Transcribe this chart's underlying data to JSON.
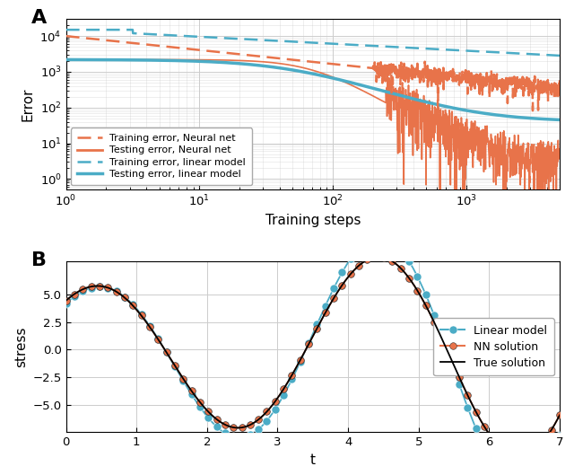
{
  "panel_A_label": "A",
  "panel_B_label": "B",
  "xlabel_A": "Training steps",
  "ylabel_A": "Error",
  "xlabel_B": "t",
  "ylabel_B": "stress",
  "legend_A": [
    {
      "label": "Training error, Neural net",
      "color": "#E8734A",
      "linestyle": "dashed"
    },
    {
      "label": "Testing error, Neural net",
      "color": "#E8734A",
      "linestyle": "solid"
    },
    {
      "label": "Training error, linear model",
      "color": "#4BACC6",
      "linestyle": "dashed"
    },
    {
      "label": "Testing error, linear model",
      "color": "#4BACC6",
      "linestyle": "solid"
    }
  ],
  "legend_B": [
    {
      "label": "Linear model",
      "color": "#4BACC6",
      "marker": "o"
    },
    {
      "label": "NN solution",
      "color": "#E8734A",
      "marker": "o"
    },
    {
      "label": "True solution",
      "color": "#000000",
      "marker": "none"
    }
  ],
  "color_orange": "#E8734A",
  "color_blue": "#4BACC6",
  "color_black": "#000000",
  "background_color": "#ffffff",
  "grid_color": "#cccccc"
}
